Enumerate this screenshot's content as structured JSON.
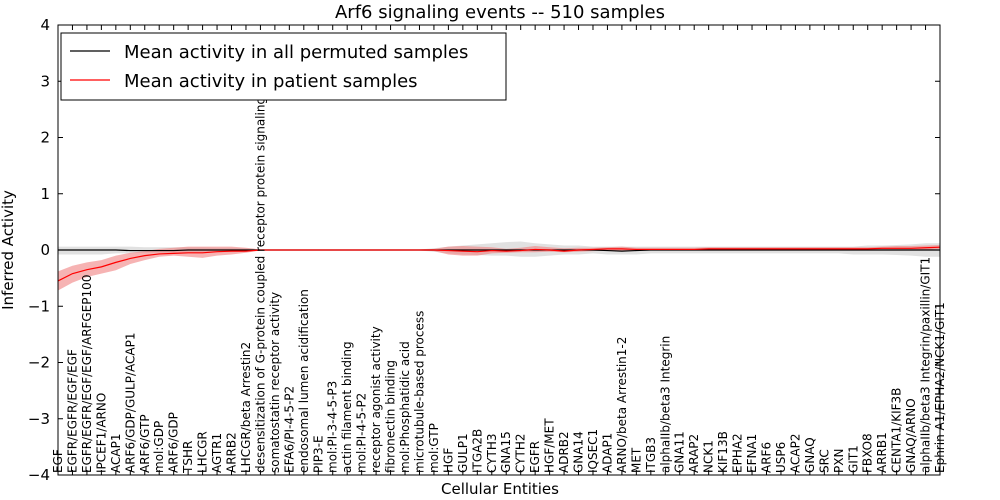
{
  "chart_data": {
    "type": "line",
    "title": "Arf6 signaling events -- 510 samples",
    "xlabel": "Cellular Entities",
    "ylabel": "Inferred Activity",
    "ylim": [
      -4,
      4
    ],
    "yticks": [
      4,
      3,
      2,
      1,
      0,
      -1,
      -2,
      -3,
      -4
    ],
    "ytick_labels": [
      "4",
      "3",
      "2",
      "1",
      "0",
      "−1",
      "−2",
      "−3",
      "−4"
    ],
    "grid": false,
    "legend_position": "top-left",
    "categories": [
      "EGF",
      "EGFR/EGFR/EGF/EGF",
      "EGFR/EGFR/EGF/EGF/ARFGEP100",
      "IPCEF1/ARNO",
      "ACAP1",
      "ARF6/GDP/GULP/ACAP1",
      "ARF6/GTP",
      "mol:GDP",
      "ARF6/GDP",
      "TSHR",
      "LHCGR",
      "AGTR1",
      "ARRB2",
      "LHCGR/beta Arrestin2",
      "desensitization of G-protein coupled receptor protein signaling pathway",
      "somatostatin receptor activity",
      "EFA6/PI-4-5-P2",
      "endosomal lumen acidification",
      "PIP3-E",
      "mol:PI-3-4-5-P3",
      "actin filament binding",
      "mol:PI-4-5-P2",
      "receptor agonist activity",
      "fibronectin binding",
      "mol:Phosphatidic acid",
      "microtubule-based process",
      "mol:GTP",
      "HGF",
      "GULP1",
      "ITGA2B",
      "CYTH3",
      "GNA15",
      "CYTH2",
      "EGFR",
      "HGF/MET",
      "ADRB2",
      "GNA14",
      "IQSEC1",
      "ADAP1",
      "ARNO/beta Arrestin1-2",
      "MET",
      "ITGB3",
      "alphaIIb/beta3 Integrin",
      "GNA11",
      "ARAP2",
      "NCK1",
      "KIF13B",
      "EPHA2",
      "EFNA1",
      "ARF6",
      "USP6",
      "ACAP2",
      "GNAQ",
      "SRC",
      "PXN",
      "GIT1",
      "FBXO8",
      "ARRB1",
      "CENTA1/KIF3B",
      "GNAQ/ARNO",
      "alphaIIb/beta3 Integrin/paxillin/GIT1",
      "Ephrin A1/EPHA2/NCK1/GIT1"
    ],
    "series": [
      {
        "name": "Mean activity in all permuted samples",
        "color": "#000000",
        "band_color": "#c8c8c8",
        "values": [
          0,
          0,
          0,
          0,
          0,
          -0.01,
          -0.01,
          -0.01,
          -0.01,
          0,
          0,
          0,
          0,
          0,
          0,
          0,
          0,
          0,
          0,
          0,
          0,
          0,
          0,
          0,
          0,
          0,
          0,
          0,
          0,
          0,
          0,
          0,
          0,
          0,
          0,
          0,
          0,
          0,
          -0.01,
          -0.02,
          -0.01,
          0,
          0,
          0,
          0,
          0,
          0,
          0,
          0,
          0,
          0,
          0,
          0,
          0,
          0,
          0,
          0,
          0,
          0,
          0,
          0,
          0
        ],
        "lower": [
          -0.08,
          -0.08,
          -0.08,
          -0.08,
          -0.06,
          -0.06,
          -0.05,
          -0.05,
          -0.05,
          -0.05,
          -0.05,
          -0.04,
          -0.04,
          -0.03,
          -0.01,
          -0.01,
          -0.01,
          -0.01,
          -0.01,
          -0.01,
          -0.01,
          -0.01,
          -0.01,
          -0.01,
          -0.01,
          -0.01,
          -0.03,
          -0.06,
          -0.08,
          -0.09,
          -0.1,
          -0.1,
          -0.12,
          -0.12,
          -0.1,
          -0.08,
          -0.08,
          -0.06,
          -0.08,
          -0.08,
          -0.08,
          -0.06,
          -0.06,
          -0.06,
          -0.06,
          -0.06,
          -0.06,
          -0.06,
          -0.06,
          -0.06,
          -0.06,
          -0.06,
          -0.06,
          -0.06,
          -0.06,
          -0.08,
          -0.08,
          -0.08,
          -0.09,
          -0.1,
          -0.12,
          -0.12
        ],
        "upper": [
          0.06,
          0.06,
          0.06,
          0.06,
          0.06,
          0.06,
          0.05,
          0.05,
          0.05,
          0.05,
          0.05,
          0.04,
          0.04,
          0.03,
          0.01,
          0.01,
          0.01,
          0.01,
          0.01,
          0.01,
          0.01,
          0.01,
          0.01,
          0.01,
          0.01,
          0.01,
          0.03,
          0.06,
          0.08,
          0.1,
          0.12,
          0.14,
          0.15,
          0.12,
          0.1,
          0.08,
          0.08,
          0.06,
          0.06,
          0.06,
          0.06,
          0.06,
          0.06,
          0.06,
          0.06,
          0.06,
          0.06,
          0.06,
          0.06,
          0.06,
          0.06,
          0.06,
          0.06,
          0.06,
          0.06,
          0.06,
          0.08,
          0.08,
          0.09,
          0.1,
          0.12,
          0.12
        ]
      },
      {
        "name": "Mean activity in patient samples",
        "color": "#ff0000",
        "band_color": "#f08080",
        "values": [
          -0.55,
          -0.42,
          -0.35,
          -0.3,
          -0.22,
          -0.15,
          -0.1,
          -0.07,
          -0.06,
          -0.05,
          -0.05,
          -0.03,
          -0.02,
          -0.02,
          0,
          0,
          0,
          0,
          0,
          0,
          0,
          0,
          0,
          0,
          0,
          0,
          0,
          -0.01,
          -0.02,
          -0.03,
          -0.01,
          -0.02,
          -0.01,
          0.01,
          0,
          -0.02,
          0,
          0.01,
          0.02,
          0.02,
          0.01,
          0.01,
          0.01,
          0.01,
          0.01,
          0.02,
          0.02,
          0.02,
          0.02,
          0.02,
          0.02,
          0.02,
          0.02,
          0.02,
          0.02,
          0.02,
          0.02,
          0.03,
          0.03,
          0.03,
          0.04,
          0.05
        ],
        "lower": [
          -0.72,
          -0.58,
          -0.48,
          -0.42,
          -0.36,
          -0.25,
          -0.18,
          -0.12,
          -0.1,
          -0.12,
          -0.14,
          -0.1,
          -0.08,
          -0.05,
          -0.01,
          -0.01,
          -0.01,
          -0.01,
          -0.01,
          -0.01,
          -0.01,
          -0.01,
          -0.01,
          -0.01,
          -0.01,
          -0.01,
          -0.02,
          -0.08,
          -0.1,
          -0.1,
          -0.06,
          -0.05,
          -0.04,
          -0.04,
          -0.03,
          -0.04,
          -0.03,
          -0.02,
          -0.01,
          -0.01,
          -0.01,
          -0.01,
          -0.01,
          -0.01,
          -0.01,
          -0.01,
          -0.01,
          -0.01,
          -0.01,
          -0.01,
          -0.01,
          -0.01,
          -0.01,
          -0.01,
          -0.01,
          -0.01,
          -0.01,
          -0.01,
          0,
          0,
          0,
          0.02
        ],
        "upper": [
          -0.38,
          -0.28,
          -0.22,
          -0.18,
          -0.1,
          -0.05,
          -0.02,
          0.02,
          0.04,
          0.06,
          0.06,
          0.06,
          0.06,
          0.04,
          0.01,
          0.01,
          0.01,
          0.01,
          0.01,
          0.01,
          0.01,
          0.01,
          0.01,
          0.01,
          0.01,
          0.01,
          0.02,
          0.06,
          0.07,
          0.06,
          0.05,
          0.02,
          0.04,
          0.07,
          0.05,
          0.03,
          0.04,
          0.04,
          0.05,
          0.06,
          0.04,
          0.04,
          0.04,
          0.04,
          0.04,
          0.05,
          0.05,
          0.05,
          0.05,
          0.05,
          0.05,
          0.05,
          0.05,
          0.05,
          0.05,
          0.05,
          0.05,
          0.06,
          0.07,
          0.07,
          0.08,
          0.09
        ]
      }
    ]
  }
}
